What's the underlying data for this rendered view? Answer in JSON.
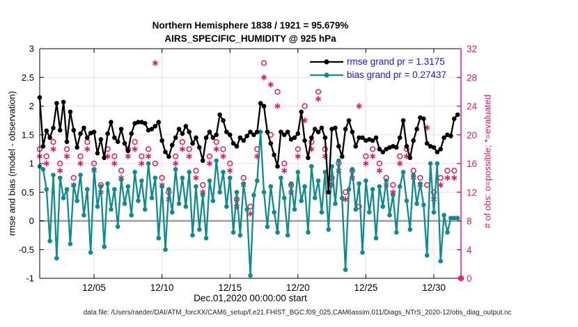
{
  "figure": {
    "title_line1": "Northern Hemisphere 1838 / 1921 = 95.679%",
    "title_line2": "AIRS_SPECIFIC_HUMIDITY @ 925 hPa",
    "footer": "data file: /Users/raeder/DAI/ATM_forcXX/CAM6_setup/f.e21.FHIST_BGC.f09_025.CAM6assim.011/Diags_NTrS_2020-12/obs_diag_output.nc"
  },
  "chart_data": {
    "type": "line",
    "title": "Northern Hemisphere 1838 / 1921 = 95.679%",
    "subtitle": "AIRS_SPECIFIC_HUMIDITY @ 925 hPa",
    "xlabel": "Dec.01,2020 00:00:00 start",
    "ylabel_left": "rmse and bias (model - observation)",
    "ylabel_right": "# of obs: o=possible; *=evaluated",
    "legend_position": "top-right-inside",
    "grid": true,
    "x_axis": {
      "min_day": 0,
      "max_day": 31,
      "tick_days": [
        4,
        9,
        14,
        19,
        24,
        29
      ],
      "tick_labels": [
        "12/05",
        "12/10",
        "12/15",
        "12/20",
        "12/25",
        "12/30"
      ]
    },
    "y_left": {
      "min": -1,
      "max": 3,
      "tick_values": [
        3,
        2.5,
        2,
        1.5,
        1,
        0.5,
        0,
        -0.5,
        -1
      ],
      "tick_labels": [
        "3",
        "2.5",
        "2",
        "1.5",
        "1",
        "0.5",
        "0",
        "-0.5",
        "-1"
      ]
    },
    "y_right": {
      "min": 0,
      "max": 32,
      "tick_values": [
        32,
        28,
        24,
        20,
        16,
        12,
        8,
        4,
        0
      ],
      "tick_labels": [
        "32",
        "28",
        "24",
        "20",
        "16",
        "12",
        "8",
        "4",
        "0"
      ]
    },
    "colors": {
      "rmse": "#000000",
      "bias": "#0e8b8b",
      "obs": "#e8195a",
      "legend_text": "#1414ff",
      "grid_h": "#f7d8e0",
      "grid_v": "#e6dede",
      "zero_line": "#b4acac",
      "spine": "#000000"
    },
    "series": [
      {
        "name": "rmse",
        "legend": "rmse grand pr = 1.3175",
        "axis": "left",
        "marker": "dot",
        "x_start": 0,
        "x_step": 0.25,
        "values": [
          2.15,
          1.3,
          1.57,
          1.45,
          1.62,
          2.05,
          1.58,
          2.07,
          1.38,
          1.9,
          1.58,
          1.28,
          1.52,
          1.62,
          1.45,
          1.53,
          1.55,
          1.18,
          1.42,
          1.1,
          1.52,
          1.72,
          1.45,
          1.38,
          1.6,
          1.35,
          1.22,
          1.52,
          1.7,
          1.72,
          1.72,
          1.7,
          1.58,
          1.6,
          1.65,
          1.72,
          1.4,
          1.2,
          1.12,
          1.32,
          1.45,
          1.6,
          1.52,
          1.65,
          1.55,
          1.35,
          1.45,
          1.28,
          1.05,
          1.45,
          1.55,
          1.45,
          1.5,
          1.85,
          1.75,
          1.55,
          1.5,
          1.35,
          1.3,
          1.45,
          1.4,
          1.48,
          1.55,
          1.5,
          1.55,
          2.05,
          2.0,
          1.55,
          1.35,
          1.15,
          0.95,
          1.55,
          1.5,
          1.55,
          1.42,
          1.45,
          1.52,
          1.9,
          1.4,
          1.1,
          1.45,
          1.6,
          1.55,
          1.62,
          1.45,
          0.5,
          1.6,
          1.62,
          1.3,
          1.12,
          1.6,
          1.75,
          1.55,
          1.3,
          1.45,
          1.45,
          1.4,
          1.42,
          1.4,
          1.45,
          1.25,
          1.2,
          1.25,
          1.28,
          1.3,
          1.28,
          1.45,
          1.75,
          1.3,
          1.1,
          1.4,
          1.6,
          1.8,
          1.78,
          1.35,
          1.3,
          1.28,
          1.2,
          1.25,
          1.45,
          1.5,
          1.48,
          1.78,
          1.85
        ]
      },
      {
        "name": "bias",
        "legend": "bias grand pr = 0.27437",
        "axis": "left",
        "marker": "dot",
        "x_start": 0,
        "x_step": 0.25,
        "values": [
          0.95,
          0.9,
          0.55,
          -0.35,
          0.8,
          -0.65,
          0.75,
          0.4,
          0.55,
          -0.4,
          0.62,
          0.35,
          0.8,
          0.1,
          0.55,
          -0.55,
          0.9,
          0.25,
          0.6,
          -0.45,
          0.65,
          0.2,
          0.55,
          -0.1,
          0.72,
          0.3,
          0.6,
          0.1,
          0.85,
          0.35,
          0.7,
          0.2,
          1.0,
          0.4,
          0.75,
          -0.3,
          0.6,
          -0.5,
          0.55,
          0.15,
          0.9,
          0.3,
          0.75,
          0.25,
          0.85,
          -0.25,
          0.6,
          -0.15,
          0.45,
          -0.3,
          0.7,
          0.35,
          1.05,
          0.5,
          0.85,
          0.25,
          0.75,
          -0.2,
          0.5,
          -0.25,
          0.65,
          0.2,
          -0.95,
          0.45,
          0.7,
          1.55,
          0.5,
          -0.1,
          0.6,
          0.15,
          -0.2,
          0.75,
          0.4,
          -0.25,
          0.65,
          0.2,
          0.85,
          0.35,
          0.6,
          -0.2,
          0.95,
          0.4,
          0.7,
          0.15,
          0.85,
          -0.15,
          0.95,
          0.3,
          1.05,
          0.4,
          -0.85,
          0.55,
          0.9,
          0.2,
          0.65,
          -0.55,
          0.7,
          0.15,
          0.55,
          -0.3,
          0.6,
          0.25,
          0.7,
          0.1,
          0.45,
          -0.2,
          0.6,
          0.85,
          0.35,
          -0.15,
          0.8,
          0.3,
          0.65,
          0.28,
          -0.6,
          1.0,
          0.15,
          1.0,
          -0.7,
          0.1,
          -0.2,
          0.05,
          0.05,
          0.05
        ]
      },
      {
        "name": "possible-obs",
        "legend": null,
        "axis": "right",
        "marker": "open-circle",
        "x_start": 0,
        "x_step": 0.5,
        "values": [
          18,
          17,
          19,
          16,
          18,
          14,
          17,
          19,
          16,
          13,
          18,
          17,
          15,
          18,
          19,
          17,
          18,
          16,
          14,
          12,
          17,
          19,
          18,
          15,
          13,
          17,
          19,
          18,
          16,
          11,
          14,
          10,
          18,
          30,
          20,
          26,
          16,
          13,
          18,
          24,
          19,
          26,
          18,
          14,
          16,
          12,
          15,
          10,
          17,
          18,
          16,
          14,
          13,
          17,
          18,
          15,
          14,
          13,
          12,
          14,
          15,
          15,
          0
        ]
      },
      {
        "name": "evaluated-obs",
        "legend": null,
        "axis": "right",
        "marker": "asterisk",
        "x_start": 0,
        "x_step": 0.5,
        "values": [
          17,
          16,
          18,
          15,
          17,
          13,
          16,
          18,
          15,
          12,
          17,
          16,
          14,
          17,
          18,
          16,
          17,
          30,
          13,
          11,
          16,
          18,
          17,
          14,
          12,
          16,
          18,
          17,
          15,
          10,
          13,
          9,
          17,
          28,
          27,
          24,
          15,
          12,
          17,
          22,
          18,
          25,
          17,
          13,
          15,
          11,
          14,
          24,
          16,
          17,
          15,
          13,
          12,
          16,
          17,
          14,
          13,
          21,
          11,
          13,
          14,
          14,
          0
        ]
      }
    ]
  }
}
